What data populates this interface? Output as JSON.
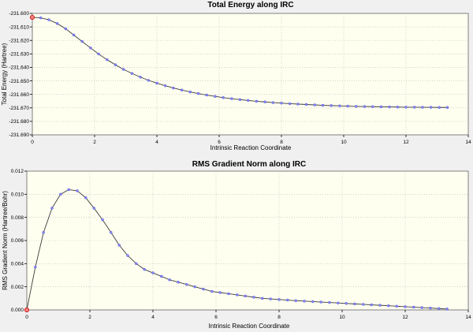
{
  "chart_data": [
    {
      "type": "line",
      "title": "Total Energy along IRC",
      "xlabel": "Intrinsic Reaction Coordinate",
      "ylabel": "Total Energy (Hartree)",
      "xlim": [
        0,
        14
      ],
      "ylim": [
        -231.69,
        -231.6
      ],
      "xticks": [
        0,
        2,
        4,
        6,
        8,
        10,
        12,
        14
      ],
      "yticks": [
        -231.6,
        -231.61,
        -231.62,
        -231.63,
        -231.64,
        -231.65,
        -231.66,
        -231.67,
        -231.68,
        -231.69
      ],
      "xtick_labels": [
        "0",
        "2",
        "4",
        "6",
        "8",
        "10",
        "12",
        "14"
      ],
      "ytick_labels": [
        "-231.600",
        "-231.610",
        "-231.620",
        "-231.630",
        "-231.640",
        "-231.650",
        "-231.660",
        "-231.670",
        "-231.680",
        "-231.690"
      ],
      "grid": true,
      "highlight_index": 0,
      "x": [
        0,
        0.27,
        0.53,
        0.8,
        1.07,
        1.33,
        1.6,
        1.87,
        2.13,
        2.4,
        2.67,
        2.93,
        3.2,
        3.47,
        3.73,
        4.0,
        4.27,
        4.53,
        4.8,
        5.07,
        5.33,
        5.6,
        5.87,
        6.13,
        6.4,
        6.67,
        6.93,
        7.2,
        7.47,
        7.73,
        8.0,
        8.27,
        8.53,
        8.8,
        9.07,
        9.33,
        9.6,
        9.87,
        10.13,
        10.4,
        10.67,
        10.93,
        11.2,
        11.47,
        11.73,
        12.0,
        12.27,
        12.53,
        12.8,
        13.07,
        13.33
      ],
      "y": [
        -231.6029,
        -231.6033,
        -231.6047,
        -231.6075,
        -231.6114,
        -231.616,
        -231.6208,
        -231.6256,
        -231.6301,
        -231.6343,
        -231.6381,
        -231.6415,
        -231.6445,
        -231.6472,
        -231.6496,
        -231.6517,
        -231.6536,
        -231.6553,
        -231.6568,
        -231.6582,
        -231.6594,
        -231.6605,
        -231.6615,
        -231.6624,
        -231.6632,
        -231.6639,
        -231.6645,
        -231.6651,
        -231.6656,
        -231.6661,
        -231.6665,
        -231.6669,
        -231.6672,
        -231.6675,
        -231.6678,
        -231.6681,
        -231.6683,
        -231.6685,
        -231.6687,
        -231.6689,
        -231.669,
        -231.6691,
        -231.6692,
        -231.6693,
        -231.6694,
        -231.6695,
        -231.6695,
        -231.6696,
        -231.6696,
        -231.6697,
        -231.6697
      ]
    },
    {
      "type": "line",
      "title": "RMS Gradient Norm along IRC",
      "xlabel": "Intrinsic Reaction Coordinate",
      "ylabel": "RMS Gradient Norm (Hartree/Bohr)",
      "xlim": [
        0,
        14
      ],
      "ylim": [
        0,
        0.012
      ],
      "xticks": [
        0,
        2,
        4,
        6,
        8,
        10,
        12,
        14
      ],
      "yticks": [
        0,
        0.002,
        0.004,
        0.006,
        0.008,
        0.01,
        0.012
      ],
      "xtick_labels": [
        "0",
        "2",
        "4",
        "6",
        "8",
        "10",
        "12",
        "14"
      ],
      "ytick_labels": [
        "0.000",
        "0.002",
        "0.004",
        "0.006",
        "0.008",
        "0.010",
        "0.012"
      ],
      "grid": true,
      "highlight_index": 0,
      "x": [
        0,
        0.27,
        0.53,
        0.8,
        1.07,
        1.33,
        1.6,
        1.87,
        2.13,
        2.4,
        2.67,
        2.93,
        3.2,
        3.47,
        3.73,
        4.0,
        4.27,
        4.53,
        4.8,
        5.07,
        5.33,
        5.6,
        5.87,
        6.13,
        6.4,
        6.67,
        6.93,
        7.2,
        7.47,
        7.73,
        8.0,
        8.27,
        8.53,
        8.8,
        9.07,
        9.33,
        9.6,
        9.87,
        10.13,
        10.4,
        10.67,
        10.93,
        11.2,
        11.47,
        11.73,
        12.0,
        12.27,
        12.53,
        12.8,
        13.07,
        13.33
      ],
      "y": [
        0.0,
        0.0037,
        0.0067,
        0.0088,
        0.01,
        0.0104,
        0.0103,
        0.0097,
        0.0088,
        0.0078,
        0.0067,
        0.0056,
        0.0047,
        0.004,
        0.0035,
        0.0032,
        0.0029,
        0.0026,
        0.0024,
        0.0022,
        0.002,
        0.0018,
        0.0016,
        0.0015,
        0.0014,
        0.0013,
        0.0012,
        0.0011,
        0.001,
        0.00095,
        0.0009,
        0.00085,
        0.0008,
        0.00076,
        0.00072,
        0.00068,
        0.00064,
        0.0006,
        0.00056,
        0.00052,
        0.00048,
        0.00044,
        0.0004,
        0.00036,
        0.00032,
        0.00028,
        0.00024,
        0.0002,
        0.00016,
        0.00012,
        8e-05
      ]
    }
  ]
}
